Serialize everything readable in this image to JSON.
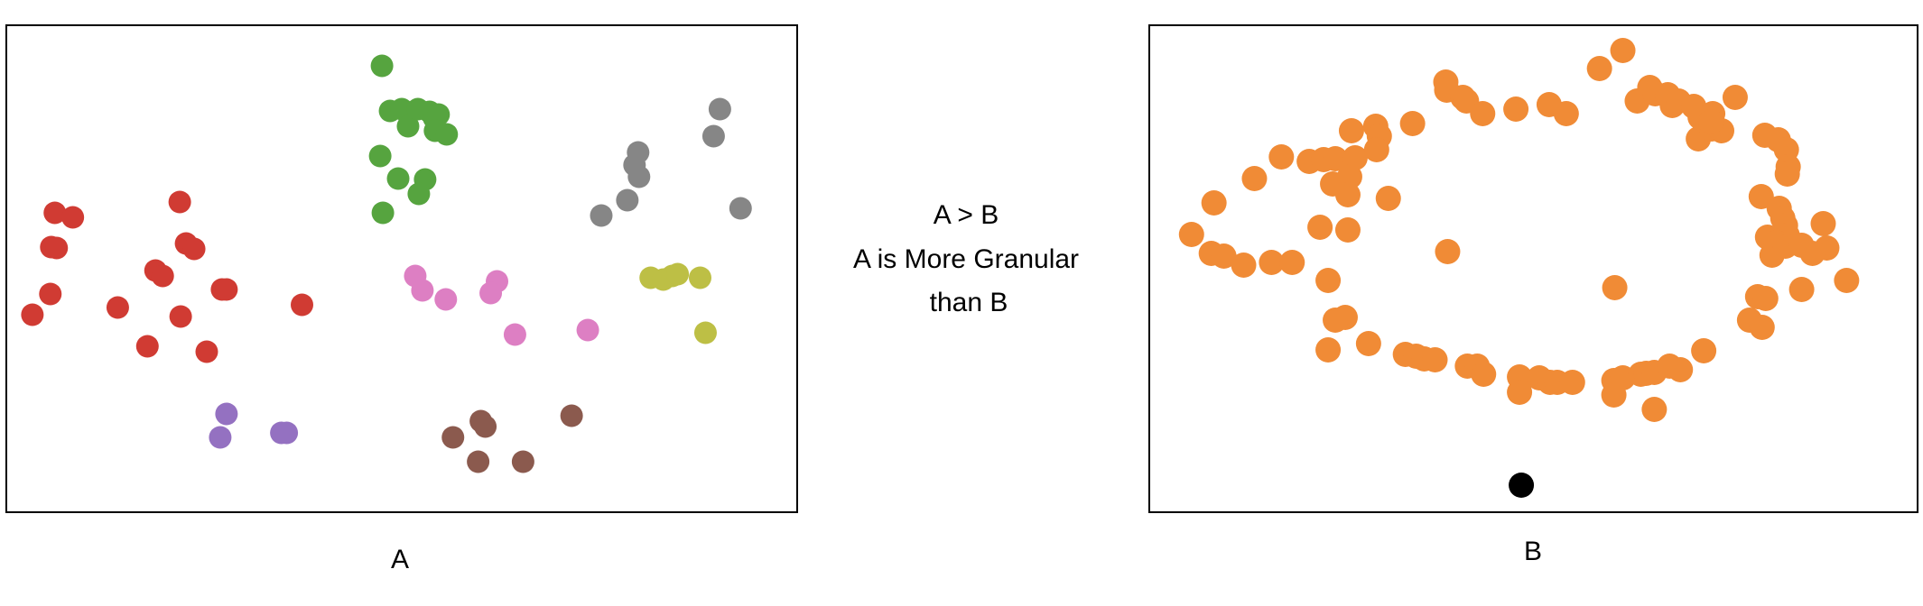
{
  "panel_a_label": "A",
  "panel_b_label": "B",
  "middle_text": [
    "A > B",
    "A is More Granular",
    "than B"
  ],
  "colors": {
    "red": "#d03b33",
    "green": "#56a43f",
    "gray": "#868686",
    "olive": "#bdbf45",
    "pink": "#dd7fc3",
    "purple": "#9471c1",
    "brown": "#8b5a4e",
    "orange": "#f08b36",
    "black": "#000000"
  },
  "chart_data": [
    {
      "type": "scatter",
      "label": "A",
      "xlim": [
        0,
        880
      ],
      "ylim": [
        0,
        540
      ],
      "clusters": [
        {
          "color": "red",
          "points": [
            [
              54,
              208
            ],
            [
              74,
              213
            ],
            [
              50,
              246
            ],
            [
              56,
              247
            ],
            [
              49,
              298
            ],
            [
              29,
              321
            ],
            [
              124,
              313
            ],
            [
              193,
              196
            ],
            [
              200,
              242
            ],
            [
              209,
              248
            ],
            [
              166,
              272
            ],
            [
              174,
              278
            ],
            [
              240,
              293
            ],
            [
              245,
              293
            ],
            [
              194,
              323
            ],
            [
              157,
              356
            ],
            [
              223,
              362
            ],
            [
              329,
              310
            ]
          ]
        },
        {
          "color": "green",
          "points": [
            [
              418,
              45
            ],
            [
              427,
              95
            ],
            [
              440,
              93
            ],
            [
              447,
              112
            ],
            [
              458,
              93
            ],
            [
              471,
              96
            ],
            [
              476,
              103
            ],
            [
              481,
              99
            ],
            [
              477,
              117
            ],
            [
              490,
              121
            ],
            [
              416,
              145
            ],
            [
              436,
              170
            ],
            [
              466,
              171
            ],
            [
              459,
              187
            ],
            [
              419,
              208
            ]
          ]
        },
        {
          "color": "gray",
          "points": [
            [
              794,
              93
            ],
            [
              787,
              123
            ],
            [
              703,
              141
            ],
            [
              699,
              155
            ],
            [
              704,
              168
            ],
            [
              691,
              194
            ],
            [
              662,
              211
            ],
            [
              817,
              203
            ]
          ]
        },
        {
          "color": "olive",
          "points": [
            [
              717,
              280
            ],
            [
              731,
              282
            ],
            [
              741,
              278
            ],
            [
              747,
              276
            ],
            [
              772,
              280
            ],
            [
              778,
              341
            ]
          ]
        },
        {
          "color": "pink",
          "points": [
            [
              455,
              278
            ],
            [
              463,
              294
            ],
            [
              489,
              304
            ],
            [
              546,
              284
            ],
            [
              539,
              297
            ],
            [
              566,
              343
            ],
            [
              647,
              338
            ]
          ]
        },
        {
          "color": "purple",
          "points": [
            [
              245,
              431
            ],
            [
              238,
              457
            ],
            [
              306,
              452
            ],
            [
              312,
              452
            ]
          ]
        },
        {
          "color": "brown",
          "points": [
            [
              629,
              433
            ],
            [
              528,
              439
            ],
            [
              533,
              445
            ],
            [
              497,
              457
            ],
            [
              525,
              484
            ],
            [
              575,
              484
            ]
          ]
        }
      ]
    },
    {
      "type": "scatter",
      "label": "B",
      "xlim": [
        0,
        855
      ],
      "ylim": [
        0,
        540
      ],
      "clusters": [
        {
          "color": "orange",
          "points": [
            [
              47,
              232
            ],
            [
              69,
              253
            ],
            [
              83,
              256
            ],
            [
              105,
              266
            ],
            [
              136,
              263
            ],
            [
              159,
              263
            ],
            [
              72,
              197
            ],
            [
              117,
              170
            ],
            [
              147,
              146
            ],
            [
              178,
              151
            ],
            [
              194,
              149
            ],
            [
              207,
              148
            ],
            [
              229,
              147
            ],
            [
              223,
              168
            ],
            [
              204,
              176
            ],
            [
              221,
              188
            ],
            [
              266,
              192
            ],
            [
              190,
              224
            ],
            [
              221,
              227
            ],
            [
              225,
              117
            ],
            [
              252,
              112
            ],
            [
              256,
              123
            ],
            [
              253,
              138
            ],
            [
              293,
              109
            ],
            [
              330,
              63
            ],
            [
              331,
              72
            ],
            [
              349,
              80
            ],
            [
              353,
              84
            ],
            [
              371,
              98
            ],
            [
              408,
              93
            ],
            [
              445,
              88
            ],
            [
              464,
              98
            ],
            [
              501,
              48
            ],
            [
              527,
              28
            ],
            [
              543,
              84
            ],
            [
              557,
              69
            ],
            [
              563,
              76
            ],
            [
              577,
              77
            ],
            [
              582,
              89
            ],
            [
              589,
              84
            ],
            [
              606,
              90
            ],
            [
              611,
              126
            ],
            [
              626,
              115
            ],
            [
              613,
              102
            ],
            [
              637,
              117
            ],
            [
              652,
              80
            ],
            [
              627,
              98
            ],
            [
              625,
              107
            ],
            [
              681,
              190
            ],
            [
              685,
              122
            ],
            [
              700,
              127
            ],
            [
              709,
              138
            ],
            [
              711,
              157
            ],
            [
              710,
              165
            ],
            [
              701,
              203
            ],
            [
              705,
              214
            ],
            [
              708,
              222
            ],
            [
              710,
              233
            ],
            [
              688,
              235
            ],
            [
              698,
              241
            ],
            [
              693,
              255
            ],
            [
              708,
              245
            ],
            [
              726,
              244
            ],
            [
              750,
              220
            ],
            [
              754,
              247
            ],
            [
              738,
              253
            ],
            [
              726,
              293
            ],
            [
              776,
              283
            ],
            [
              677,
              301
            ],
            [
              686,
              303
            ],
            [
              668,
              327
            ],
            [
              682,
              335
            ],
            [
              332,
              251
            ],
            [
              518,
              291
            ],
            [
              199,
              283
            ],
            [
              244,
              353
            ],
            [
              218,
              324
            ],
            [
              207,
              327
            ],
            [
              199,
              360
            ],
            [
              285,
              365
            ],
            [
              297,
              367
            ],
            [
              306,
              370
            ],
            [
              318,
              371
            ],
            [
              354,
              378
            ],
            [
              365,
              378
            ],
            [
              372,
              387
            ],
            [
              412,
              390
            ],
            [
              412,
              407
            ],
            [
              434,
              391
            ],
            [
              446,
              396
            ],
            [
              454,
              396
            ],
            [
              471,
              396
            ],
            [
              517,
              394
            ],
            [
              517,
              410
            ],
            [
              527,
              391
            ],
            [
              547,
              387
            ],
            [
              553,
              386
            ],
            [
              562,
              385
            ],
            [
              579,
              378
            ],
            [
              591,
              382
            ],
            [
              617,
              361
            ],
            [
              562,
              426
            ]
          ]
        },
        {
          "color": "black",
          "points": [
            [
              414,
              510
            ]
          ]
        }
      ]
    }
  ]
}
